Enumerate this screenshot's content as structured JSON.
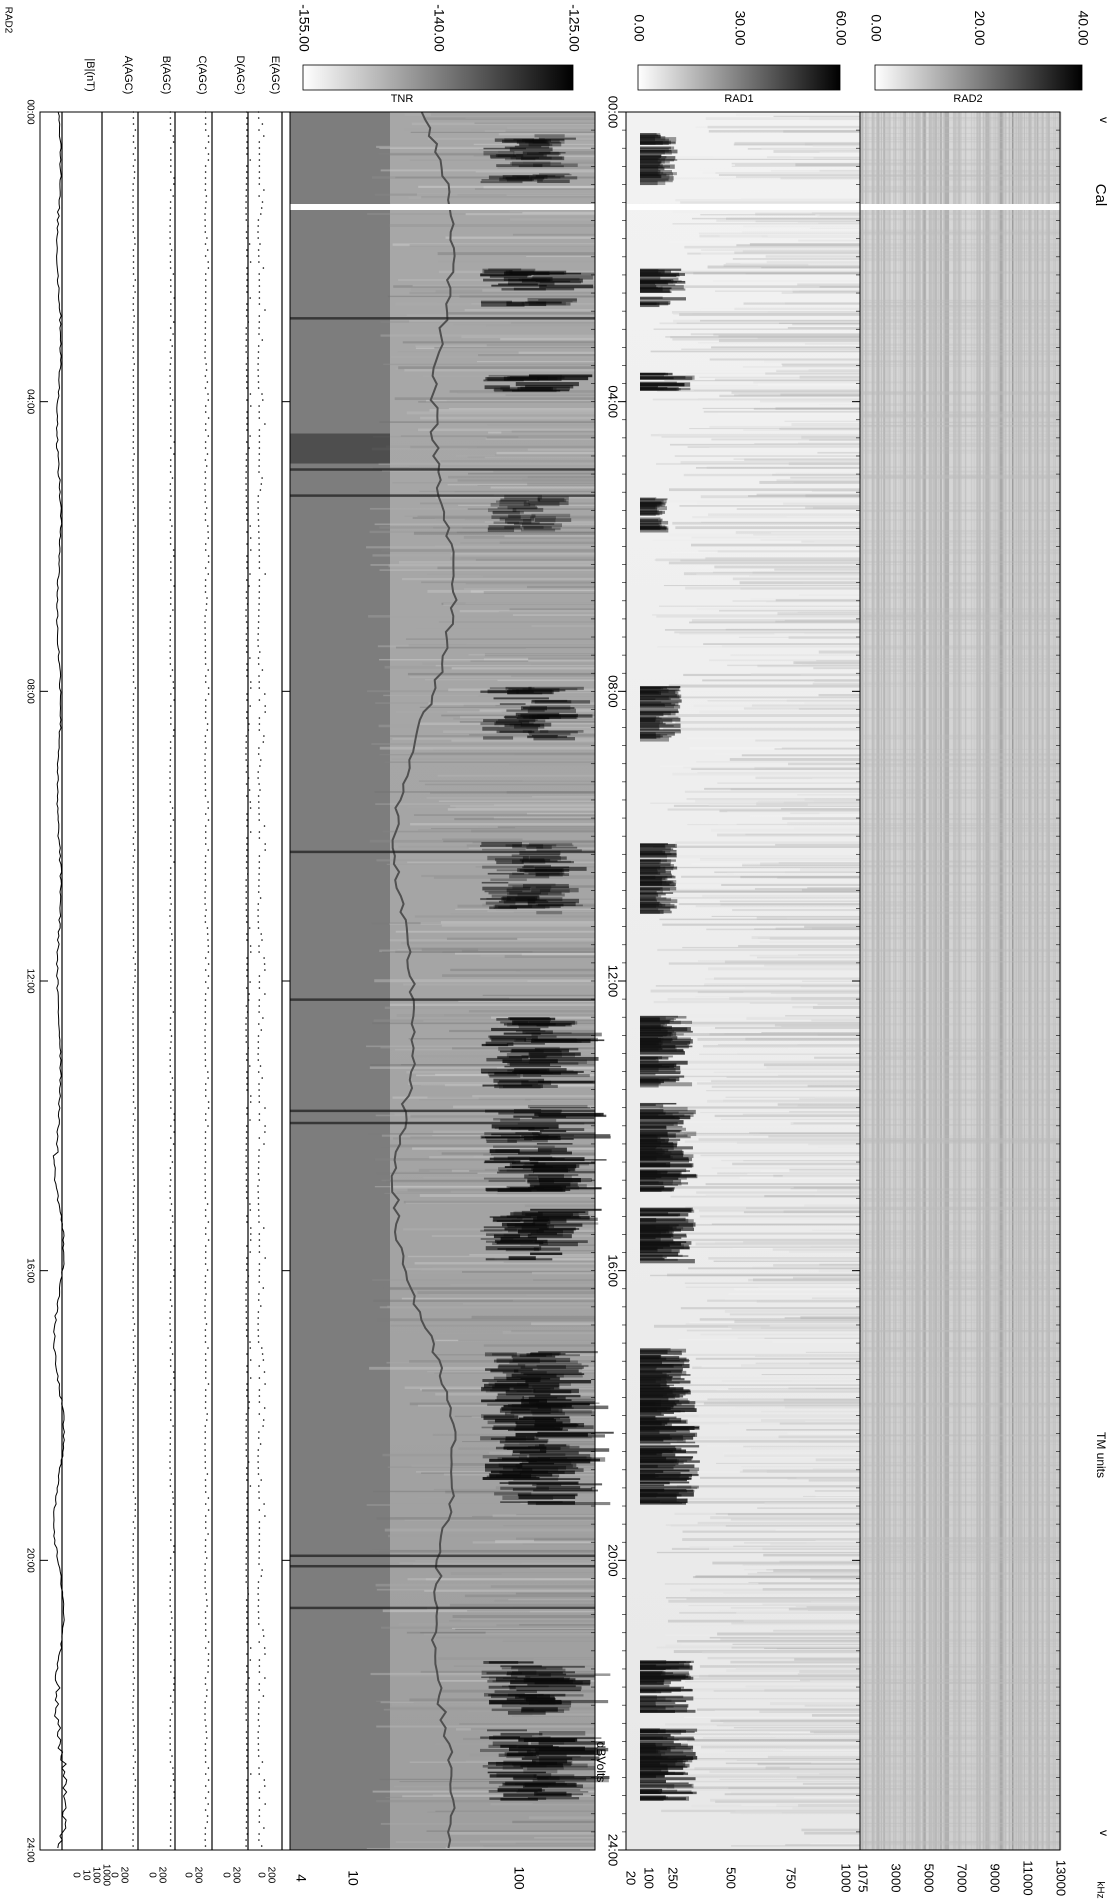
{
  "chart_data": {
    "type": "heatmap",
    "time_ticks": [
      "00:00",
      "04:00",
      "08:00",
      "12:00",
      "16:00",
      "20:00",
      "24:00"
    ],
    "calibration_label": "Cal",
    "marker": "v",
    "units_label": "TM units",
    "dbvolts_label": "dBVolts",
    "panels": [
      {
        "name": "RAD2",
        "scale_ticks": [
          "0.00",
          "20.00",
          "40.00"
        ],
        "scale_range": [
          0,
          40
        ],
        "freq_ticks": [
          "1075",
          "3000",
          "5000",
          "7000",
          "9000",
          "11000",
          "13000"
        ],
        "freq_unit": "kHz"
      },
      {
        "name": "RAD1",
        "scale_ticks": [
          "0.00",
          "30.00",
          "60.00"
        ],
        "scale_range": [
          0,
          60
        ],
        "freq_ticks": [
          "20",
          "100",
          "250",
          "500",
          "750",
          "1000"
        ],
        "freq_end": "1075"
      },
      {
        "name": "TNR",
        "scale_ticks": [
          "-155.00",
          "-140.00",
          "-125.00"
        ],
        "scale_range": [
          -155,
          -125
        ],
        "freq_ticks": [
          "4",
          "10",
          "100"
        ]
      }
    ],
    "line_panels": [
      {
        "label": "E(AGC)",
        "ticks": [
          "0",
          "200"
        ]
      },
      {
        "label": "D(AGC)",
        "ticks": [
          "0",
          "200"
        ]
      },
      {
        "label": "C(AGC)",
        "ticks": [
          "0",
          "200"
        ]
      },
      {
        "label": "B(AGC)",
        "ticks": [
          "0",
          "200"
        ]
      },
      {
        "label": "A(AGC)",
        "ticks": [
          "0",
          "200"
        ]
      },
      {
        "label": "|B|(nT)",
        "ticks": [
          "0",
          "10",
          "100",
          "1000"
        ]
      }
    ],
    "bottom_label": "RAD2"
  }
}
